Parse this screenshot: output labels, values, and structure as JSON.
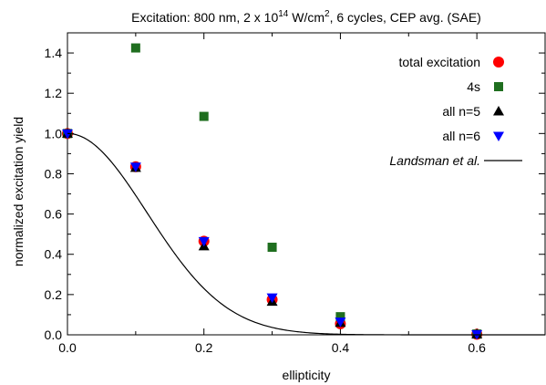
{
  "chart_data": {
    "type": "scatter",
    "title_parts": {
      "pre": "Excitation: 800 nm, 2 x 10",
      "sup": "14",
      "mid": " W/cm",
      "sup2": "2",
      "post": ", 6 cycles, CEP avg. (SAE)"
    },
    "xlabel": "ellipticity",
    "ylabel": "normalized excitation yield",
    "xlim": [
      0.0,
      0.7
    ],
    "ylim": [
      0.0,
      1.5
    ],
    "xticks": [
      "0.0",
      "0.2",
      "0.4",
      "0.6"
    ],
    "xtick_values": [
      0.0,
      0.2,
      0.4,
      0.6
    ],
    "yticks": [
      "0.0",
      "0.2",
      "0.4",
      "0.6",
      "0.8",
      "1.0",
      "1.2",
      "1.4"
    ],
    "ytick_values": [
      0.0,
      0.2,
      0.4,
      0.6,
      0.8,
      1.0,
      1.2,
      1.4
    ],
    "grid": false,
    "legend_position": "top-right",
    "series": [
      {
        "name": "total excitation",
        "marker": "circle",
        "color": "#ff0000",
        "points": [
          [
            0.0,
            1.0
          ],
          [
            0.1,
            0.835
          ],
          [
            0.2,
            0.465
          ],
          [
            0.3,
            0.175
          ],
          [
            0.4,
            0.055
          ],
          [
            0.6,
            0.003
          ]
        ]
      },
      {
        "name": "4s",
        "marker": "square",
        "color": "#1f6e1f",
        "points": [
          [
            0.0,
            1.0
          ],
          [
            0.1,
            1.425
          ],
          [
            0.2,
            1.085
          ],
          [
            0.3,
            0.435
          ],
          [
            0.4,
            0.09
          ],
          [
            0.6,
            0.004
          ]
        ]
      },
      {
        "name": "all n=5",
        "marker": "triangle-up",
        "color": "#000000",
        "points": [
          [
            0.0,
            1.0
          ],
          [
            0.1,
            0.83
          ],
          [
            0.2,
            0.44
          ],
          [
            0.3,
            0.165
          ],
          [
            0.4,
            0.06
          ],
          [
            0.6,
            0.003
          ]
        ]
      },
      {
        "name": "all n=6",
        "marker": "triangle-down",
        "color": "#0000ff",
        "points": [
          [
            0.0,
            1.0
          ],
          [
            0.1,
            0.835
          ],
          [
            0.2,
            0.465
          ],
          [
            0.3,
            0.185
          ],
          [
            0.4,
            0.065
          ],
          [
            0.6,
            0.003
          ]
        ]
      },
      {
        "name": "Landsman et al.",
        "marker": "line",
        "color": "#000000",
        "function": "exp(-(e/0.165)^2)",
        "width_parameter": 0.165
      }
    ]
  }
}
